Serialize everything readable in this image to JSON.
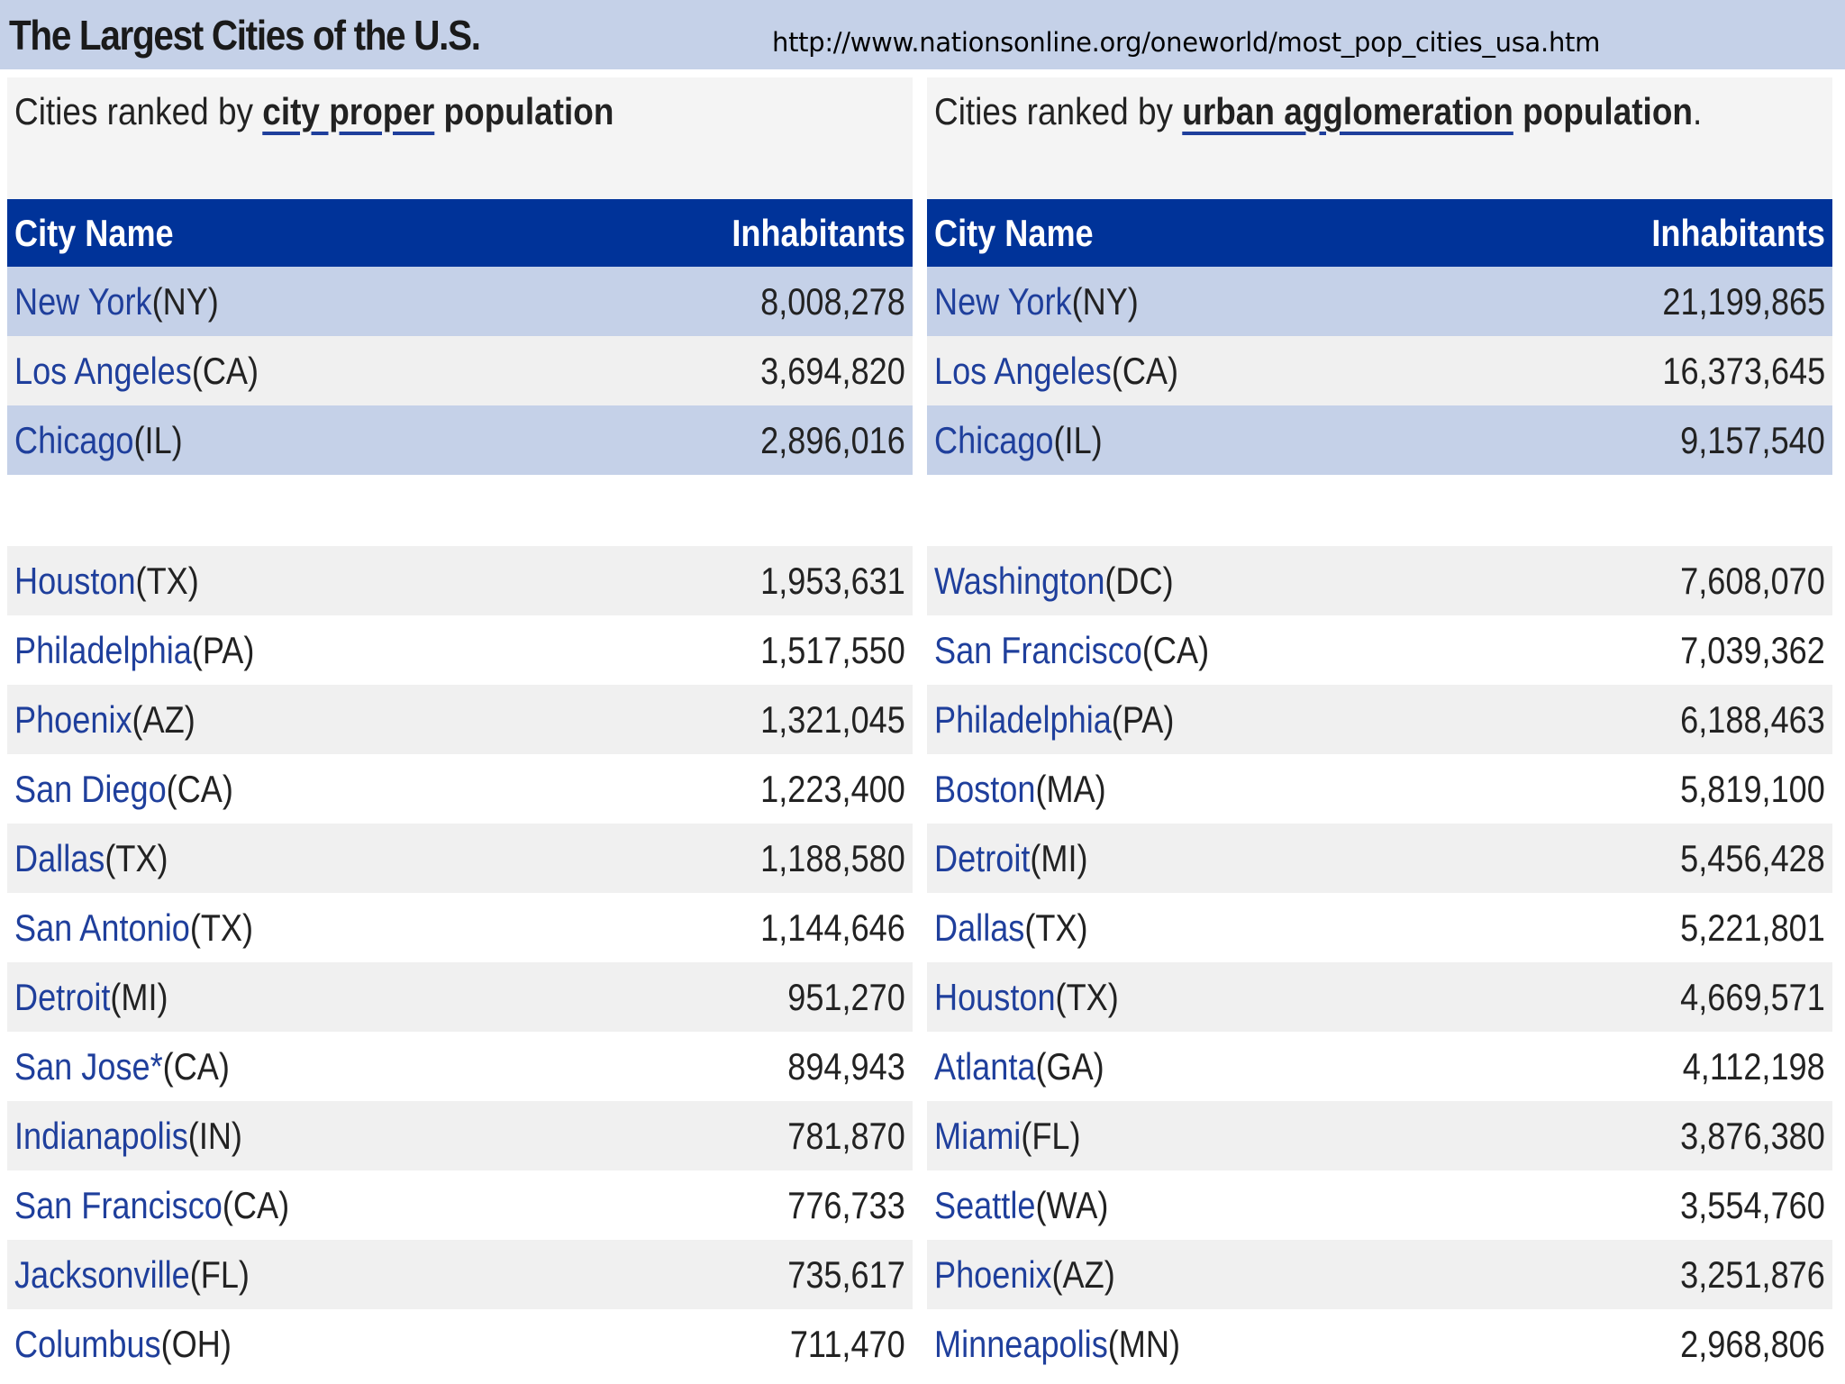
{
  "header": {
    "title": "The Largest Cities of the U.S.",
    "url": "http://www.nationsonline.org/oneworld/most_pop_cities_usa.htm"
  },
  "left": {
    "caption_prefix": "Cities ranked by ",
    "caption_link": "city proper",
    "caption_suffix": " population",
    "caption_end": "",
    "col_city": "City Name",
    "col_inhabitants": "Inhabitants",
    "rows": [
      {
        "city": "New York",
        "state": " (NY)",
        "value": "8,008,278"
      },
      {
        "city": "Los Angeles",
        "state": " (CA)",
        "value": "3,694,820"
      },
      {
        "city": "Chicago",
        "state": " (IL)",
        "value": "2,896,016"
      },
      {
        "city": "Houston",
        "state": " (TX)",
        "value": "1,953,631"
      },
      {
        "city": "Philadelphia",
        "state": " (PA)",
        "value": "1,517,550"
      },
      {
        "city": "Phoenix",
        "state": " (AZ)",
        "value": "1,321,045"
      },
      {
        "city": "San Diego",
        "state": " (CA)",
        "value": "1,223,400"
      },
      {
        "city": "Dallas",
        "state": " (TX)",
        "value": "1,188,580"
      },
      {
        "city": "San Antonio",
        "state": " (TX)",
        "value": "1,144,646"
      },
      {
        "city": "Detroit",
        "state": " (MI)",
        "value": "951,270"
      },
      {
        "city": "San Jose*",
        "state": " (CA)",
        "value": "894,943"
      },
      {
        "city": "Indianapolis",
        "state": " (IN)",
        "value": "781,870"
      },
      {
        "city": "San Francisco",
        "state": " (CA)",
        "value": "776,733"
      },
      {
        "city": "Jacksonville",
        "state": " (FL)",
        "value": "735,617"
      },
      {
        "city": "Columbus",
        "state": " (OH)",
        "value": "711,470"
      }
    ]
  },
  "right": {
    "caption_prefix": "Cities ranked by ",
    "caption_link": "urban agglomeration",
    "caption_suffix": " population",
    "caption_end": ".",
    "col_city": "City Name",
    "col_inhabitants": "Inhabitants",
    "rows": [
      {
        "city": "New York",
        "state": " (NY)",
        "value": "21,199,865"
      },
      {
        "city": "Los Angeles",
        "state": " (CA)",
        "value": "16,373,645"
      },
      {
        "city": "Chicago",
        "state": " (IL)",
        "value": "9,157,540"
      },
      {
        "city": "Washington",
        "state": " (DC)",
        "value": "7,608,070"
      },
      {
        "city": "San Francisco",
        "state": " (CA)",
        "value": "7,039,362"
      },
      {
        "city": "Philadelphia",
        "state": " (PA)",
        "value": "6,188,463"
      },
      {
        "city": "Boston",
        "state": " (MA)",
        "value": "5,819,100"
      },
      {
        "city": "Detroit",
        "state": " (MI)",
        "value": "5,456,428"
      },
      {
        "city": "Dallas",
        "state": " (TX)",
        "value": "5,221,801"
      },
      {
        "city": "Houston",
        "state": " (TX)",
        "value": "4,669,571"
      },
      {
        "city": "Atlanta",
        "state": " (GA)",
        "value": "4,112,198"
      },
      {
        "city": "Miami",
        "state": " (FL)",
        "value": "3,876,380"
      },
      {
        "city": "Seattle",
        "state": " (WA)",
        "value": "3,554,760"
      },
      {
        "city": "Phoenix",
        "state": " (AZ)",
        "value": "3,251,876"
      },
      {
        "city": "Minneapolis",
        "state": " (MN)",
        "value": "2,968,806"
      }
    ]
  }
}
